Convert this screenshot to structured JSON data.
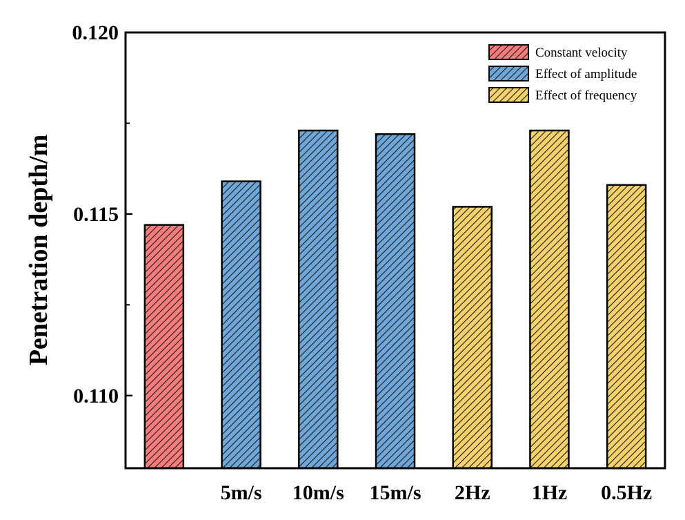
{
  "chart_data": {
    "type": "bar",
    "title": "",
    "xlabel": "",
    "ylabel": "Penetration depth/m",
    "ylim": [
      0.108,
      0.12
    ],
    "yticks": [
      {
        "value": 0.11,
        "label": "0.110"
      },
      {
        "value": 0.115,
        "label": "0.115"
      },
      {
        "value": 0.12,
        "label": "0.120"
      }
    ],
    "categories": [
      "",
      "5m/s",
      "10m/s",
      "15m/s",
      "2Hz",
      "1Hz",
      "0.5Hz"
    ],
    "values": [
      0.1147,
      0.1159,
      0.1173,
      0.1172,
      0.1152,
      0.1173,
      0.1158
    ],
    "bar_groups": [
      0,
      1,
      1,
      1,
      2,
      2,
      2
    ],
    "series": [
      {
        "name": "Constant velocity",
        "color": "#f87c7c"
      },
      {
        "name": "Effect of amplitude",
        "color": "#6ea6d8"
      },
      {
        "name": "Effect of frequency",
        "color": "#f5d26b"
      }
    ],
    "legend_position": "top-right",
    "grid": false,
    "hatch": "diagonal"
  }
}
